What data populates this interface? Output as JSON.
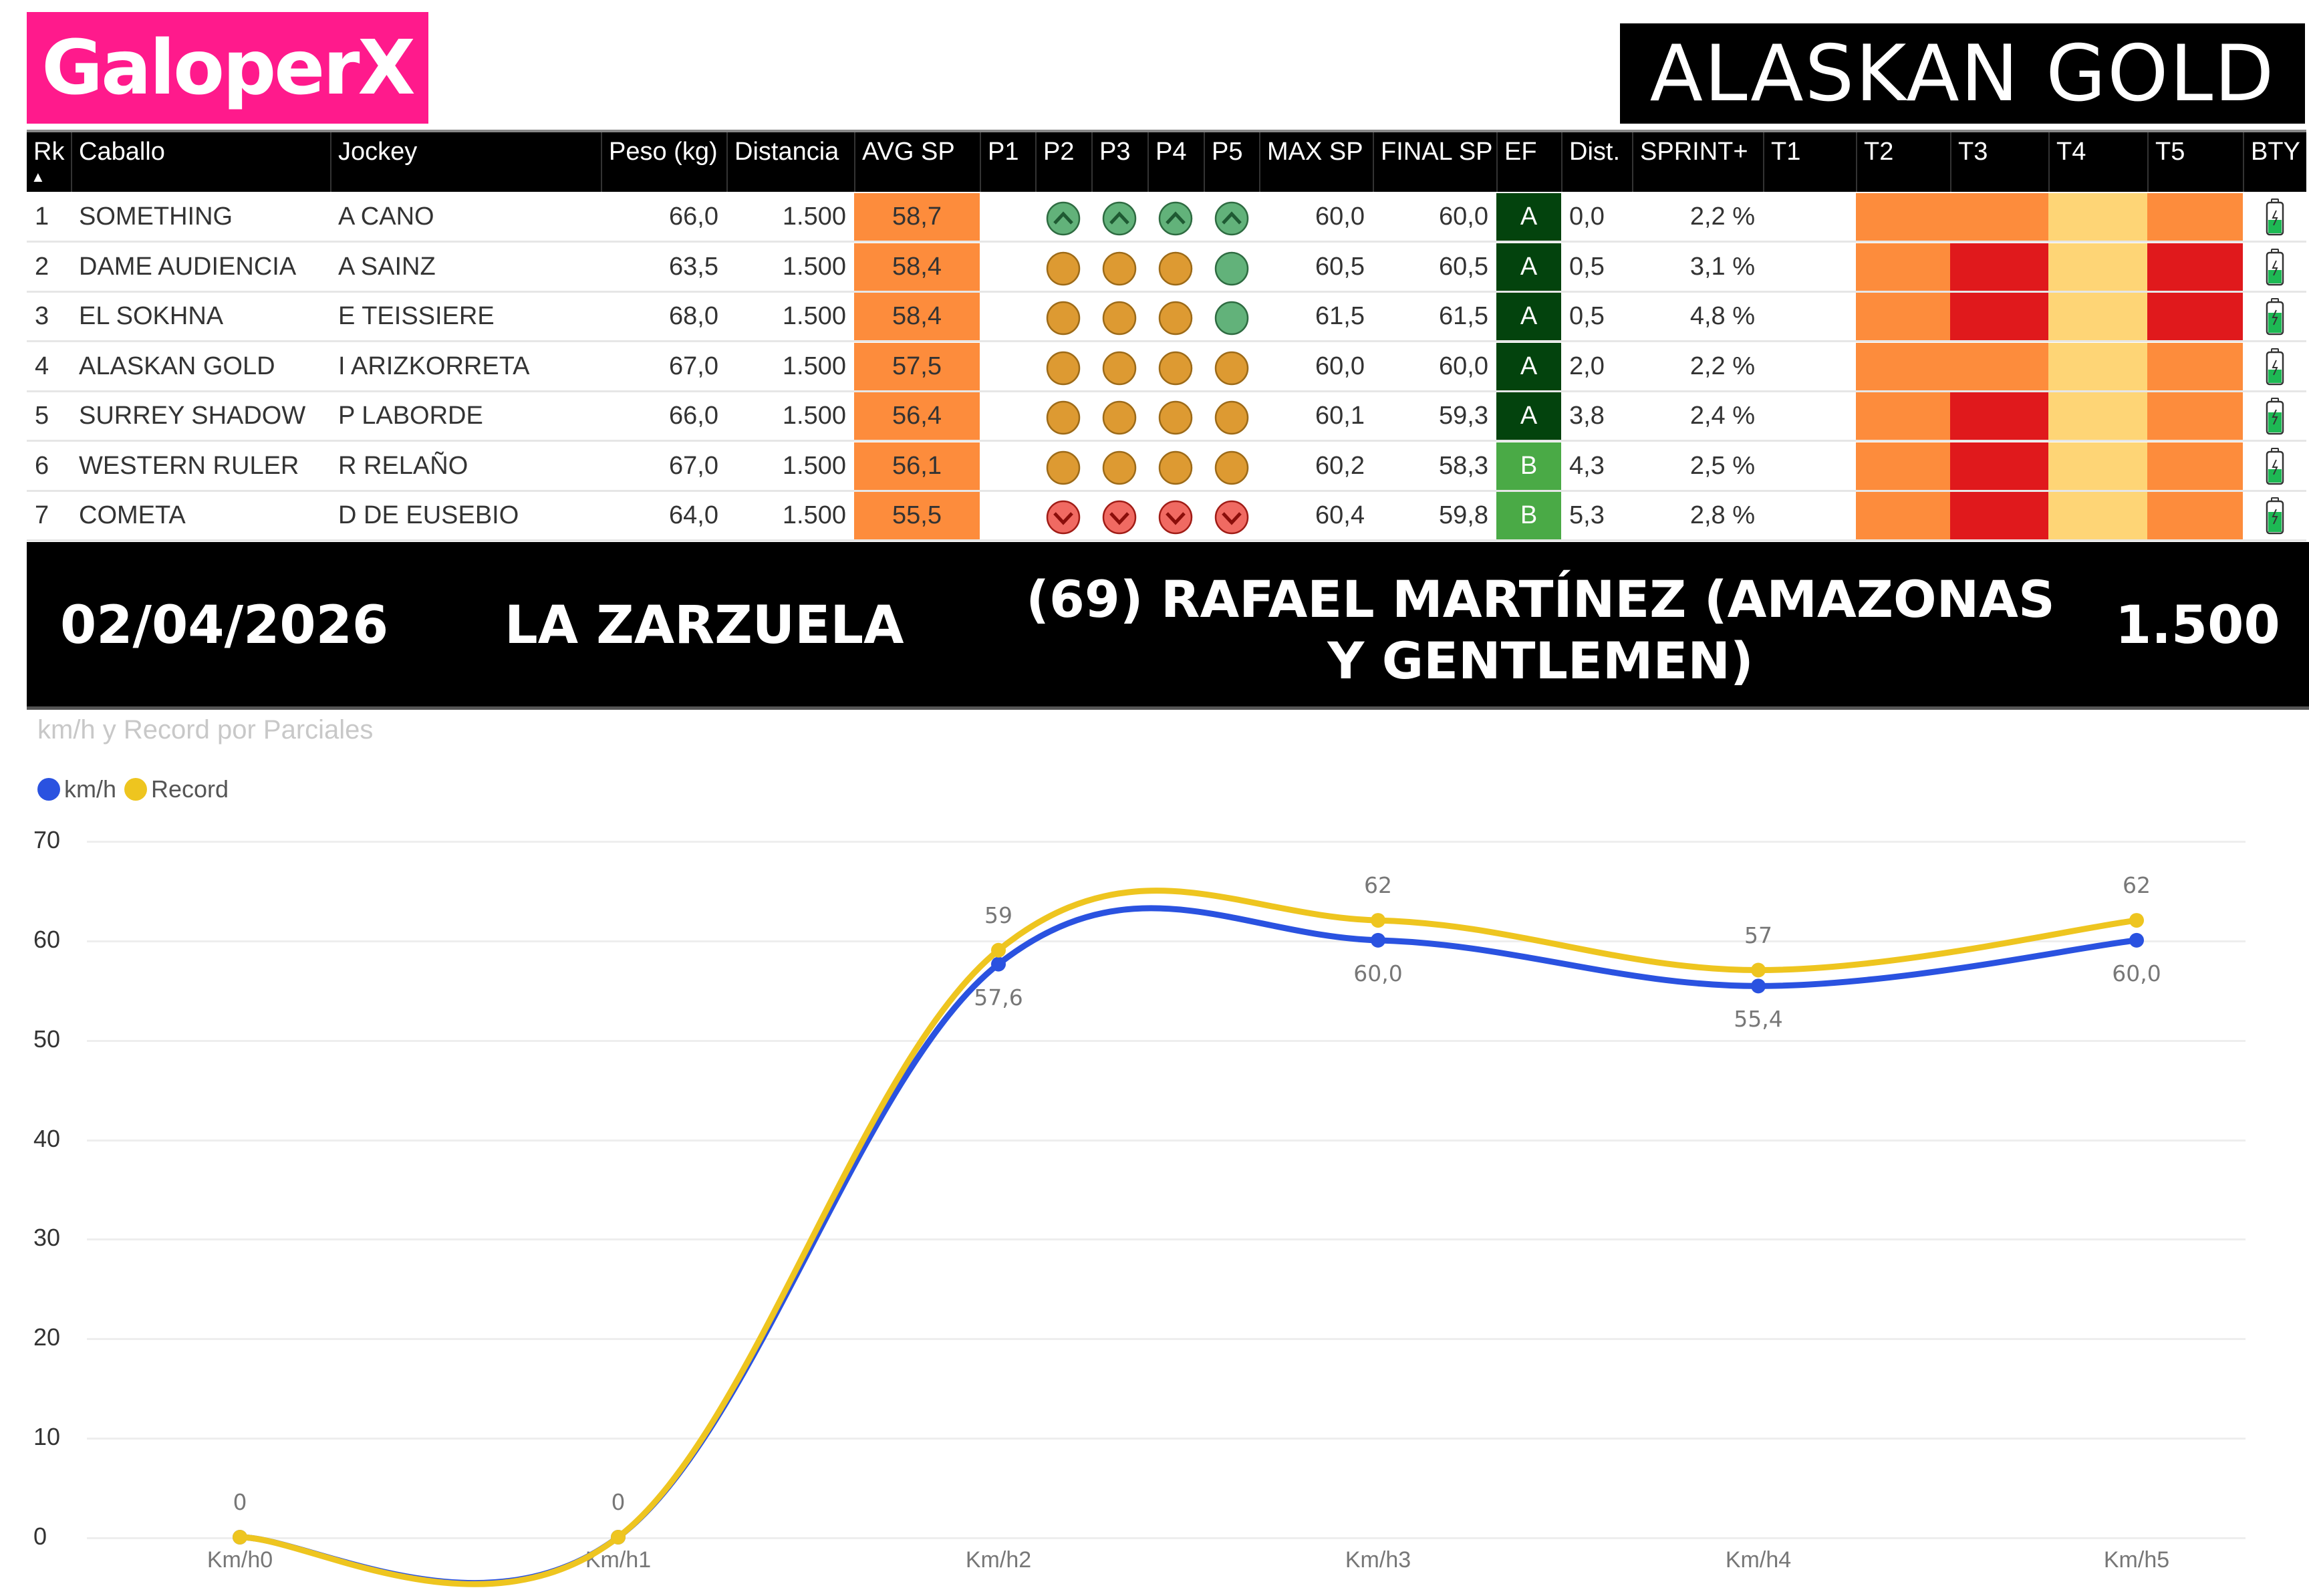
{
  "brand": {
    "logo_text": "GaloperX",
    "logo_color": "#ff1a8c"
  },
  "selected_horse": {
    "title": "ALASKAN GOLD"
  },
  "table": {
    "sort_indicator": "▲",
    "columns": [
      "Rk",
      "Caballo",
      "Jockey",
      "Peso (kg)",
      "Distancia",
      "AVG SP",
      "P1",
      "P2",
      "P3",
      "P4",
      "P5",
      "MAX SP",
      "FINAL SP",
      "EF",
      "Dist.",
      "SPRINT+",
      "T1",
      "T2",
      "T3",
      "T4",
      "T5",
      "BTY"
    ],
    "rows": [
      {
        "rk": "1",
        "caballo": "SOMETHING",
        "jockey": "A CANO",
        "peso": "66,0",
        "distancia": "1.500",
        "avg_sp": "58,7",
        "p": [
          "",
          "up",
          "up",
          "up",
          "up"
        ],
        "max_sp": "60,0",
        "final_sp": "60,0",
        "ef": "A",
        "dist": "0,0",
        "sprint": "2,2 %",
        "t": [
          "",
          "orange",
          "orange",
          "yellow",
          "orange"
        ],
        "bty": "low"
      },
      {
        "rk": "2",
        "caballo": "DAME AUDIENCIA",
        "jockey": "A SAINZ",
        "peso": "63,5",
        "distancia": "1.500",
        "avg_sp": "58,4",
        "p": [
          "",
          "mid",
          "mid",
          "mid",
          "good"
        ],
        "max_sp": "60,5",
        "final_sp": "60,5",
        "ef": "A",
        "dist": "0,5",
        "sprint": "3,1 %",
        "t": [
          "",
          "orange",
          "red",
          "yellow",
          "red"
        ],
        "bty": "low"
      },
      {
        "rk": "3",
        "caballo": "EL SOKHNA",
        "jockey": "E TEISSIERE",
        "peso": "68,0",
        "distancia": "1.500",
        "avg_sp": "58,4",
        "p": [
          "",
          "mid",
          "mid",
          "mid",
          "good"
        ],
        "max_sp": "61,5",
        "final_sp": "61,5",
        "ef": "A",
        "dist": "0,5",
        "sprint": "4,8 %",
        "t": [
          "",
          "orange",
          "red",
          "yellow",
          "red"
        ],
        "bty": "high"
      },
      {
        "rk": "4",
        "caballo": "ALASKAN GOLD",
        "jockey": "I ARIZKORRETA",
        "peso": "67,0",
        "distancia": "1.500",
        "avg_sp": "57,5",
        "p": [
          "",
          "mid",
          "mid",
          "mid",
          "mid"
        ],
        "max_sp": "60,0",
        "final_sp": "60,0",
        "ef": "A",
        "dist": "2,0",
        "sprint": "2,2 %",
        "t": [
          "",
          "orange",
          "orange",
          "yellow",
          "orange"
        ],
        "bty": "low"
      },
      {
        "rk": "5",
        "caballo": "SURREY SHADOW",
        "jockey": "P LABORDE",
        "peso": "66,0",
        "distancia": "1.500",
        "avg_sp": "56,4",
        "p": [
          "",
          "mid",
          "mid",
          "mid",
          "mid"
        ],
        "max_sp": "60,1",
        "final_sp": "59,3",
        "ef": "A",
        "dist": "3,8",
        "sprint": "2,4 %",
        "t": [
          "",
          "orange",
          "red",
          "yellow",
          "orange"
        ],
        "bty": "high"
      },
      {
        "rk": "6",
        "caballo": "WESTERN RULER",
        "jockey": "R RELAÑO",
        "peso": "67,0",
        "distancia": "1.500",
        "avg_sp": "56,1",
        "p": [
          "",
          "mid",
          "mid",
          "mid",
          "mid"
        ],
        "max_sp": "60,2",
        "final_sp": "58,3",
        "ef": "B",
        "dist": "4,3",
        "sprint": "2,5 %",
        "t": [
          "",
          "orange",
          "red",
          "yellow",
          "orange"
        ],
        "bty": "low"
      },
      {
        "rk": "7",
        "caballo": "COMETA",
        "jockey": "D DE EUSEBIO",
        "peso": "64,0",
        "distancia": "1.500",
        "avg_sp": "55,5",
        "p": [
          "",
          "down",
          "down",
          "down",
          "down"
        ],
        "max_sp": "60,4",
        "final_sp": "59,8",
        "ef": "B",
        "dist": "5,3",
        "sprint": "2,8 %",
        "t": [
          "",
          "orange",
          "red",
          "yellow",
          "orange"
        ],
        "bty": "high"
      }
    ]
  },
  "colors": {
    "avg_sp_bg": "#fd8c3c",
    "ef_A": "#03430d",
    "ef_B": "#4aaa46",
    "t_orange": "#fd8c3c",
    "t_red": "#e0191c",
    "t_yellow": "#fed576",
    "dot_up": "#62b27a",
    "dot_mid": "#dd9a32",
    "dot_good": "#62b27a",
    "dot_down": "#f06a62",
    "series_kmh": "#2a52e0",
    "series_record": "#eec51f"
  },
  "banner": {
    "date": "02/04/2026",
    "venue": "LA ZARZUELA",
    "race": "(69) RAFAEL MARTÍNEZ (AMAZONAS Y GENTLEMEN)",
    "distance": "1.500"
  },
  "chart_data": {
    "type": "line",
    "title": "km/h y Record por Parciales",
    "xlabel": "",
    "ylabel": "",
    "categories": [
      "Km/h0",
      "Km/h1",
      "Km/h2",
      "Km/h3",
      "Km/h4",
      "Km/h5"
    ],
    "series": [
      {
        "name": "km/h",
        "values": [
          0,
          0,
          57.6,
          60.0,
          55.4,
          60.0
        ],
        "labels": [
          "",
          "",
          "57,6",
          "60,0",
          "55,4",
          "60,0"
        ]
      },
      {
        "name": "Record",
        "values": [
          0,
          0,
          59,
          62,
          57,
          62
        ],
        "labels": [
          "0",
          "0",
          "59",
          "62",
          "57",
          "62"
        ]
      }
    ],
    "yticks": [
      "70",
      "60",
      "50",
      "40",
      "30",
      "20",
      "10",
      "0"
    ],
    "ylim": [
      0,
      70
    ],
    "grid": true,
    "legend_position": "top-left"
  }
}
